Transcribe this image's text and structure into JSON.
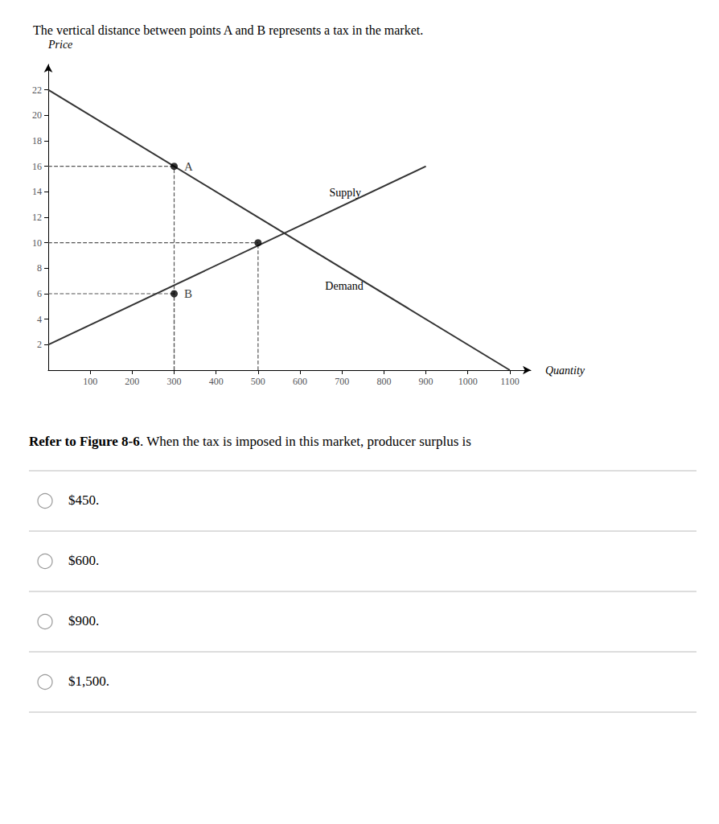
{
  "chart_data": {
    "type": "line",
    "title": "The vertical distance between points A and B represents a tax in the market.",
    "xlabel": "Quantity",
    "ylabel": "Price",
    "series": [
      {
        "name": "Demand",
        "type": "line",
        "color": "#333333",
        "x": [
          0,
          1100
        ],
        "values": [
          22,
          0
        ]
      },
      {
        "name": "Supply",
        "type": "line",
        "color": "#333333",
        "x": [
          0,
          900
        ],
        "values": [
          2,
          16
        ]
      }
    ],
    "points": {
      "type": "scatter",
      "color": "#000000",
      "x": [
        300,
        300,
        500
      ],
      "values": [
        16,
        6,
        10
      ],
      "labels": [
        "A",
        "B",
        null
      ]
    },
    "guides": {
      "color": "#555555",
      "line_style": "dashed"
    },
    "xlim": [
      0,
      1150
    ],
    "xticks": [
      100,
      200,
      300,
      400,
      500,
      600,
      700,
      800,
      900,
      1000,
      1100
    ],
    "ylim": [
      0,
      24
    ],
    "yticks": [
      2,
      4,
      6,
      8,
      10,
      12,
      14,
      16,
      18,
      20,
      22
    ],
    "grid": false,
    "question_bold": "Refer to Figure 8-6",
    "question_rest": ". When the tax is imposed in this market, producer surplus is",
    "options": [
      "$450.",
      "$600.",
      "$900.",
      "$1,500."
    ]
  }
}
